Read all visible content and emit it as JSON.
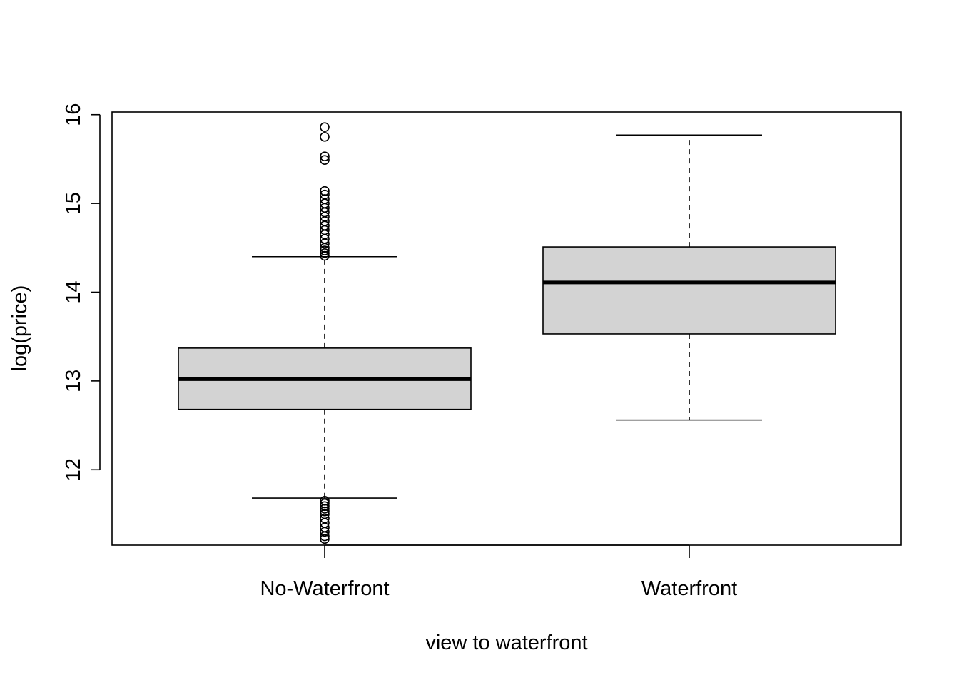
{
  "chart_data": {
    "type": "box",
    "xlabel": "view to waterfront",
    "ylabel": "log(price)",
    "categories": [
      "No-Waterfront",
      "Waterfront"
    ],
    "yticks": [
      "12",
      "13",
      "14",
      "15",
      "16"
    ],
    "ylim": [
      11.15,
      16.03
    ],
    "box_fill": "#d3d3d3",
    "line_color": "#000000",
    "boxes": [
      {
        "category": "No-Waterfront",
        "whisker_low": 11.68,
        "q1": 12.68,
        "median": 13.02,
        "q3": 13.37,
        "whisker_high": 14.4,
        "outliers": [
          11.22,
          11.25,
          11.3,
          11.35,
          11.4,
          11.45,
          11.5,
          11.53,
          11.56,
          11.59,
          11.62,
          11.65,
          14.41,
          14.44,
          14.47,
          14.5,
          14.55,
          14.6,
          14.65,
          14.7,
          14.75,
          14.8,
          14.85,
          14.9,
          14.95,
          15.0,
          15.05,
          15.1,
          15.14,
          15.49,
          15.53,
          15.75,
          15.86
        ]
      },
      {
        "category": "Waterfront",
        "whisker_low": 12.56,
        "q1": 13.53,
        "median": 14.11,
        "q3": 14.51,
        "whisker_high": 15.77,
        "outliers": []
      }
    ]
  }
}
